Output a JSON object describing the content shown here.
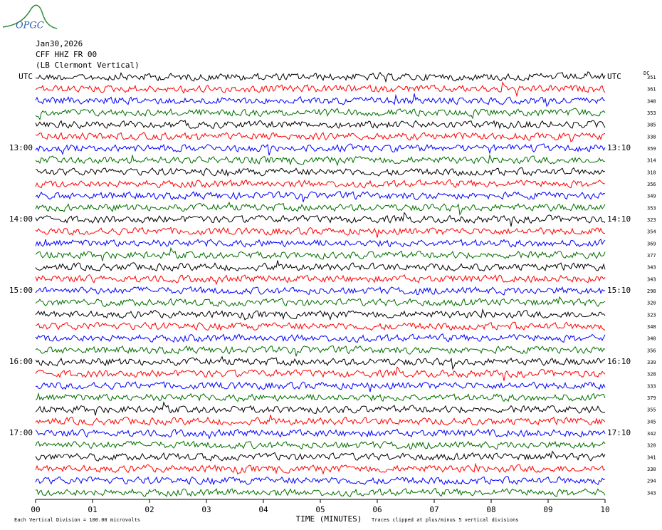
{
  "header": {
    "logo": "OPGC",
    "date": "Jan30,2026",
    "station": "CFF HHZ FR 00",
    "location": "(LB  Clermont Vertical)",
    "dc_label": "DC"
  },
  "axis": {
    "x_label": "TIME (MINUTES)",
    "x_ticks": [
      {
        "value": 0,
        "label": "00"
      },
      {
        "value": 1,
        "label": "01"
      },
      {
        "value": 2,
        "label": "02"
      },
      {
        "value": 3,
        "label": "03"
      },
      {
        "value": 4,
        "label": "04"
      },
      {
        "value": 5,
        "label": "05"
      },
      {
        "value": 6,
        "label": "06"
      },
      {
        "value": 7,
        "label": "07"
      },
      {
        "value": 8,
        "label": "08"
      },
      {
        "value": 9,
        "label": "09"
      },
      {
        "value": 10,
        "label": "10"
      }
    ],
    "xlim": [
      0,
      10
    ]
  },
  "trace_colors": [
    "#000000",
    "#ff0000",
    "#0000ff",
    "#006e00"
  ],
  "rows": [
    {
      "left": "UTC",
      "right": "UTC",
      "dc": 351
    },
    {
      "dc": 361
    },
    {
      "dc": 340
    },
    {
      "dc": 353
    },
    {
      "dc": 385
    },
    {
      "dc": 338
    },
    {
      "left": "13:00",
      "right": "13:10",
      "dc": 359
    },
    {
      "dc": 314
    },
    {
      "dc": 318
    },
    {
      "dc": 356
    },
    {
      "dc": 349
    },
    {
      "dc": 353
    },
    {
      "left": "14:00",
      "right": "14:10",
      "dc": 323
    },
    {
      "dc": 354
    },
    {
      "dc": 369
    },
    {
      "dc": 377
    },
    {
      "dc": 343
    },
    {
      "dc": 343
    },
    {
      "left": "15:00",
      "right": "15:10",
      "dc": 298
    },
    {
      "dc": 320
    },
    {
      "dc": 323
    },
    {
      "dc": 348
    },
    {
      "dc": 340
    },
    {
      "dc": 356
    },
    {
      "left": "16:00",
      "right": "16:10",
      "dc": 339
    },
    {
      "dc": 328
    },
    {
      "dc": 333
    },
    {
      "dc": 379
    },
    {
      "dc": 355
    },
    {
      "dc": 345
    },
    {
      "left": "17:00",
      "right": "17:10",
      "dc": 342
    },
    {
      "dc": 320
    },
    {
      "dc": 341
    },
    {
      "dc": 330
    },
    {
      "dc": 294
    },
    {
      "dc": 343
    }
  ],
  "footer": {
    "scale": "Each Vertical Division =  100.00 microvolts",
    "clip": "Traces clipped at plus/minus 5 vertical divisions"
  }
}
